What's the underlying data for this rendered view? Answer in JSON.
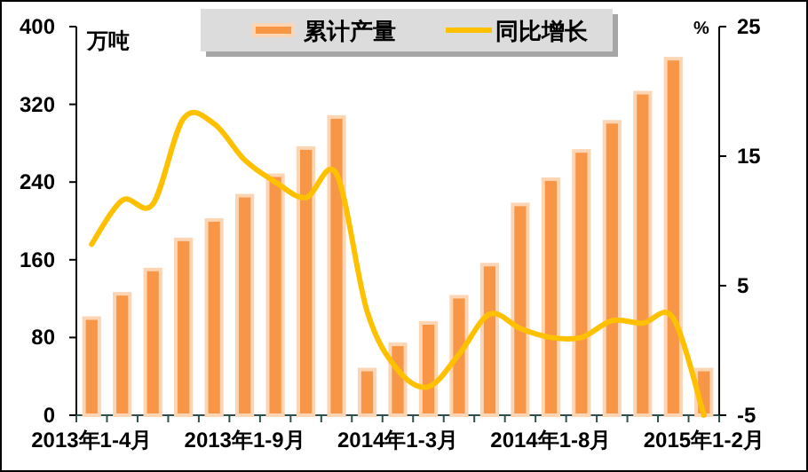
{
  "chart_data": {
    "type": "bar",
    "categories": [
      "2013年1-4月",
      null,
      null,
      null,
      null,
      "2013年1-9月",
      null,
      null,
      null,
      null,
      "2014年1-3月",
      null,
      null,
      null,
      null,
      "2014年1-8月",
      null,
      null,
      null,
      null,
      "2015年1-2月"
    ],
    "series": [
      {
        "name": "累计产量",
        "color": "#f79646",
        "values": [
          100,
          125,
          150,
          181,
          201,
          226,
          247,
          275,
          307,
          47,
          73,
          95,
          122,
          155,
          217,
          243,
          272,
          302,
          332,
          367,
          47
        ]
      },
      {
        "name": "同比增长",
        "type": "line",
        "axis": "y2",
        "color": "#ffc000",
        "values": [
          8.2,
          11.6,
          11.3,
          17.9,
          17.5,
          14.7,
          13,
          11.8,
          13.6,
          3,
          -1.5,
          -2.8,
          -0.3,
          2.8,
          1.7,
          1,
          1,
          2.3,
          2.1,
          2.5,
          -5
        ]
      }
    ],
    "ylabel": "万吨",
    "y2label": "%",
    "ylim": [
      0,
      400
    ],
    "yticks": [
      0,
      80,
      160,
      240,
      320,
      400
    ],
    "y2lim": [
      -5,
      25
    ],
    "y2ticks": [
      -5,
      5,
      15,
      25
    ],
    "legend": "top",
    "grid": false
  }
}
